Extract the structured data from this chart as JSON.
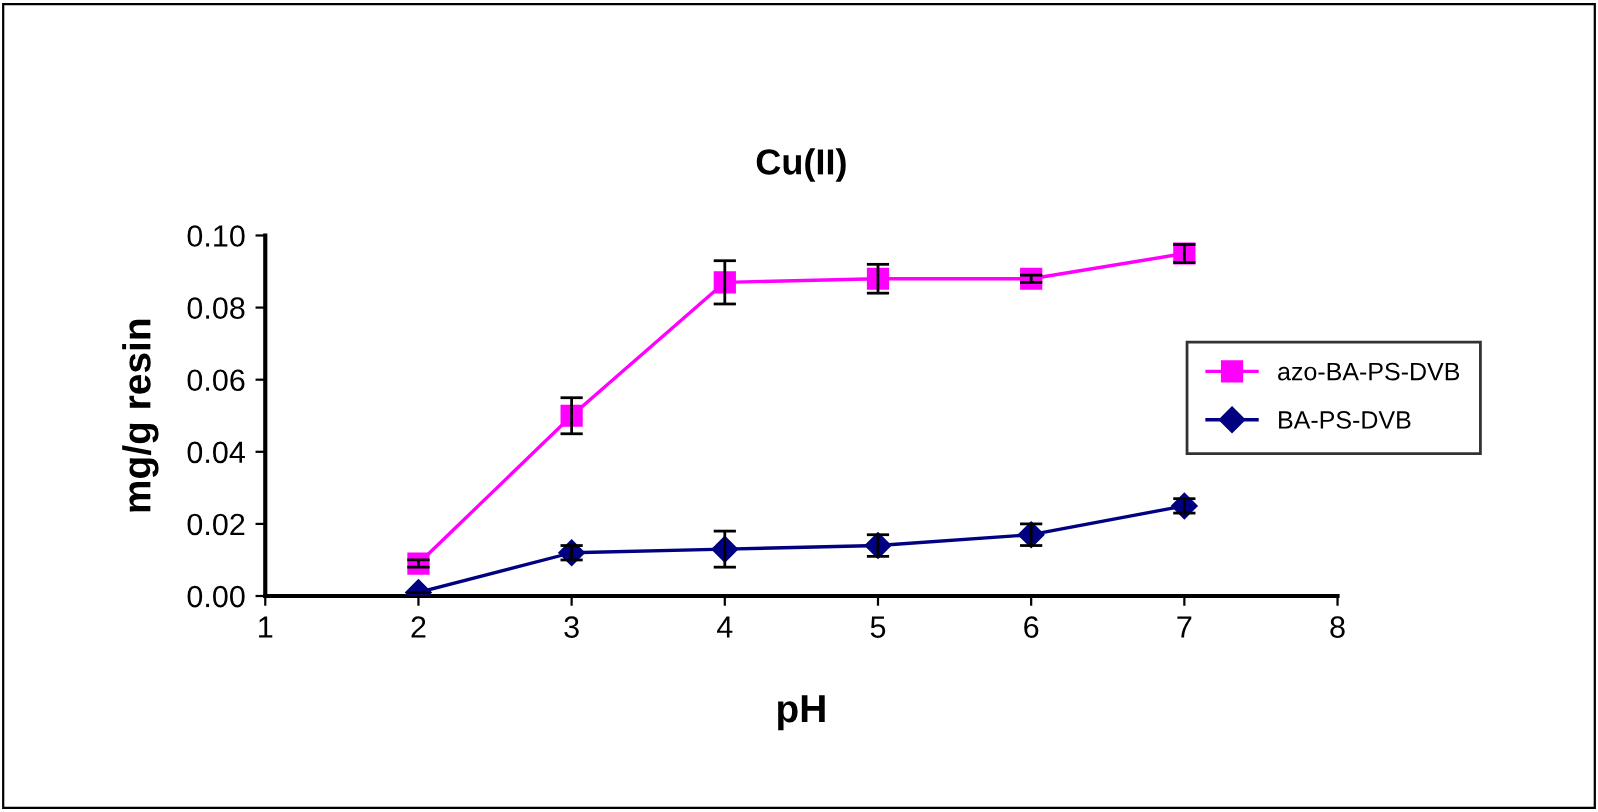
{
  "chart_data": {
    "type": "line",
    "title": "Cu(II)",
    "xlabel": "pH",
    "ylabel": "mg/g resin",
    "x": [
      2,
      3,
      4,
      5,
      6,
      7
    ],
    "series": [
      {
        "name": "azo-BA-PS-DVB",
        "color": "#ff00ff",
        "marker": "square",
        "values": [
          0.009,
          0.05,
          0.087,
          0.088,
          0.088,
          0.095
        ],
        "errors": [
          0.001,
          0.005,
          0.006,
          0.004,
          0.001,
          0.0025
        ]
      },
      {
        "name": "BA-PS-DVB",
        "color": "#000080",
        "marker": "diamond",
        "values": [
          0.001,
          0.012,
          0.013,
          0.014,
          0.017,
          0.025
        ],
        "errors": [
          null,
          0.002,
          0.005,
          0.003,
          0.003,
          0.002
        ]
      }
    ],
    "xlim": [
      1,
      8
    ],
    "xticks": [
      1,
      2,
      3,
      4,
      5,
      6,
      7,
      8
    ],
    "ylim": [
      0,
      0.1
    ],
    "yticks": [
      {
        "value": 0,
        "label": "0.00"
      },
      {
        "value": 0.02,
        "label": "0.02"
      },
      {
        "value": 0.04,
        "label": "0.04"
      },
      {
        "value": 0.06,
        "label": "0.06"
      },
      {
        "value": 0.08,
        "label": "0.08"
      },
      {
        "value": 0.1,
        "label": "0.10"
      }
    ],
    "legend": "right",
    "grid": false
  }
}
